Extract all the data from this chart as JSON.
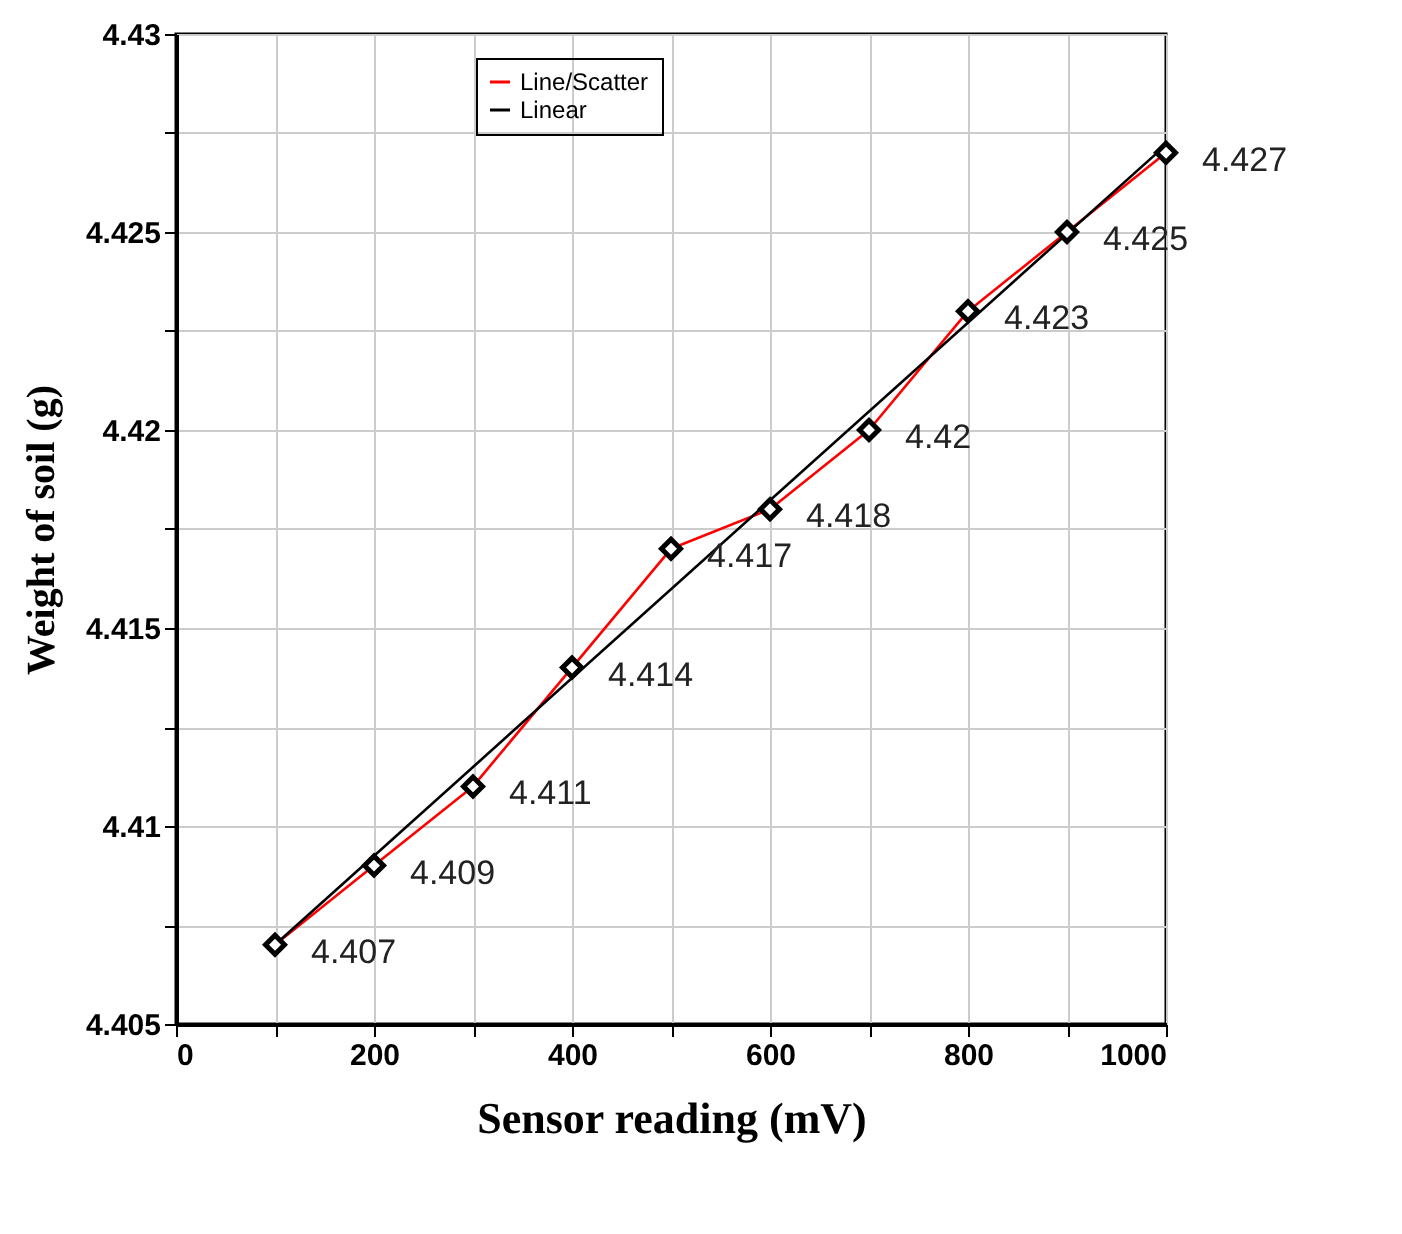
{
  "chart_data": {
    "type": "line",
    "xlabel": "Sensor reading (mV)",
    "ylabel": "Weight of soil (g)",
    "xlim": [
      0,
      1000
    ],
    "xticks": [
      0,
      {
        "value": 100,
        "label": null
      },
      200,
      {
        "value": 300,
        "label": null
      },
      400,
      {
        "value": 500,
        "label": null
      },
      600,
      {
        "value": 700,
        "label": null
      },
      800,
      {
        "value": 900,
        "label": null
      },
      1000
    ],
    "ylim": [
      4.405,
      4.43
    ],
    "yticks": [
      4.405,
      {
        "value": 4.4075,
        "label": null
      },
      4.41,
      {
        "value": 4.4125,
        "label": null
      },
      4.415,
      {
        "value": 4.4175,
        "label": null
      },
      4.42,
      {
        "value": 4.4225,
        "label": null
      },
      4.425,
      {
        "value": 4.4275,
        "label": null
      },
      4.43
    ],
    "grid": true,
    "legend": "top",
    "line_style": "solid",
    "series": [
      {
        "name": "Line/Scatter",
        "color": "#ff0000",
        "x": [
          100,
          200,
          300,
          400,
          500,
          600,
          700,
          800,
          900,
          1000
        ],
        "values": [
          4.407,
          4.409,
          4.411,
          4.414,
          4.417,
          4.418,
          4.42,
          4.423,
          4.425,
          4.427
        ],
        "data_labels": true,
        "marker": "diamond"
      },
      {
        "name": "Linear",
        "type": "line",
        "color": "#000000",
        "x": [
          100,
          1000
        ],
        "values": [
          4.407,
          4.4272
        ]
      }
    ]
  }
}
